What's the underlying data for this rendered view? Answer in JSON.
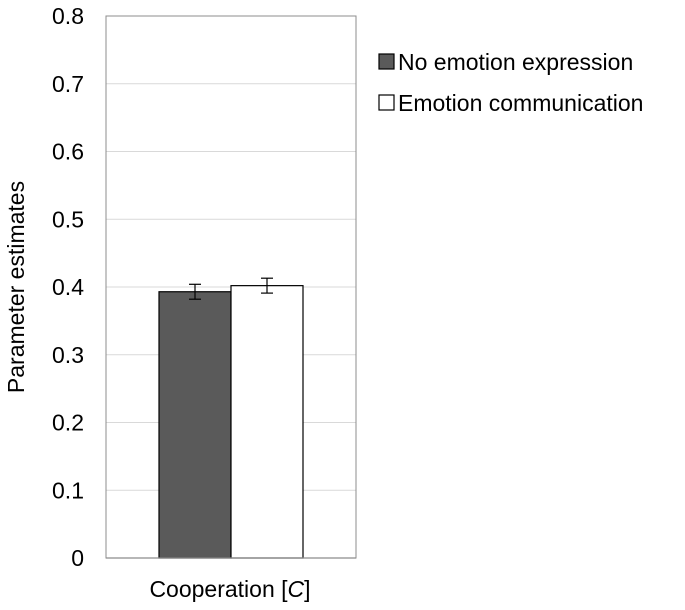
{
  "chart_data": {
    "type": "bar",
    "ylabel": "Parameter estimates",
    "ylim": [
      0,
      0.8
    ],
    "yticks": [
      "0",
      "0.1",
      "0.2",
      "0.3",
      "0.4",
      "0.5",
      "0.6",
      "0.7",
      "0.8"
    ],
    "grid": true,
    "legend_position": "right",
    "categories": [
      {
        "prefix": "Cooperation [",
        "symbol": "C",
        "suffix": "]"
      }
    ],
    "series": [
      {
        "name": "No emotion expression",
        "values": [
          0.393
        ],
        "errors": [
          0.011
        ],
        "color": "#5a5a5a"
      },
      {
        "name": "Emotion communication",
        "values": [
          0.402
        ],
        "errors": [
          0.011
        ],
        "color": "#ffffff"
      }
    ]
  }
}
